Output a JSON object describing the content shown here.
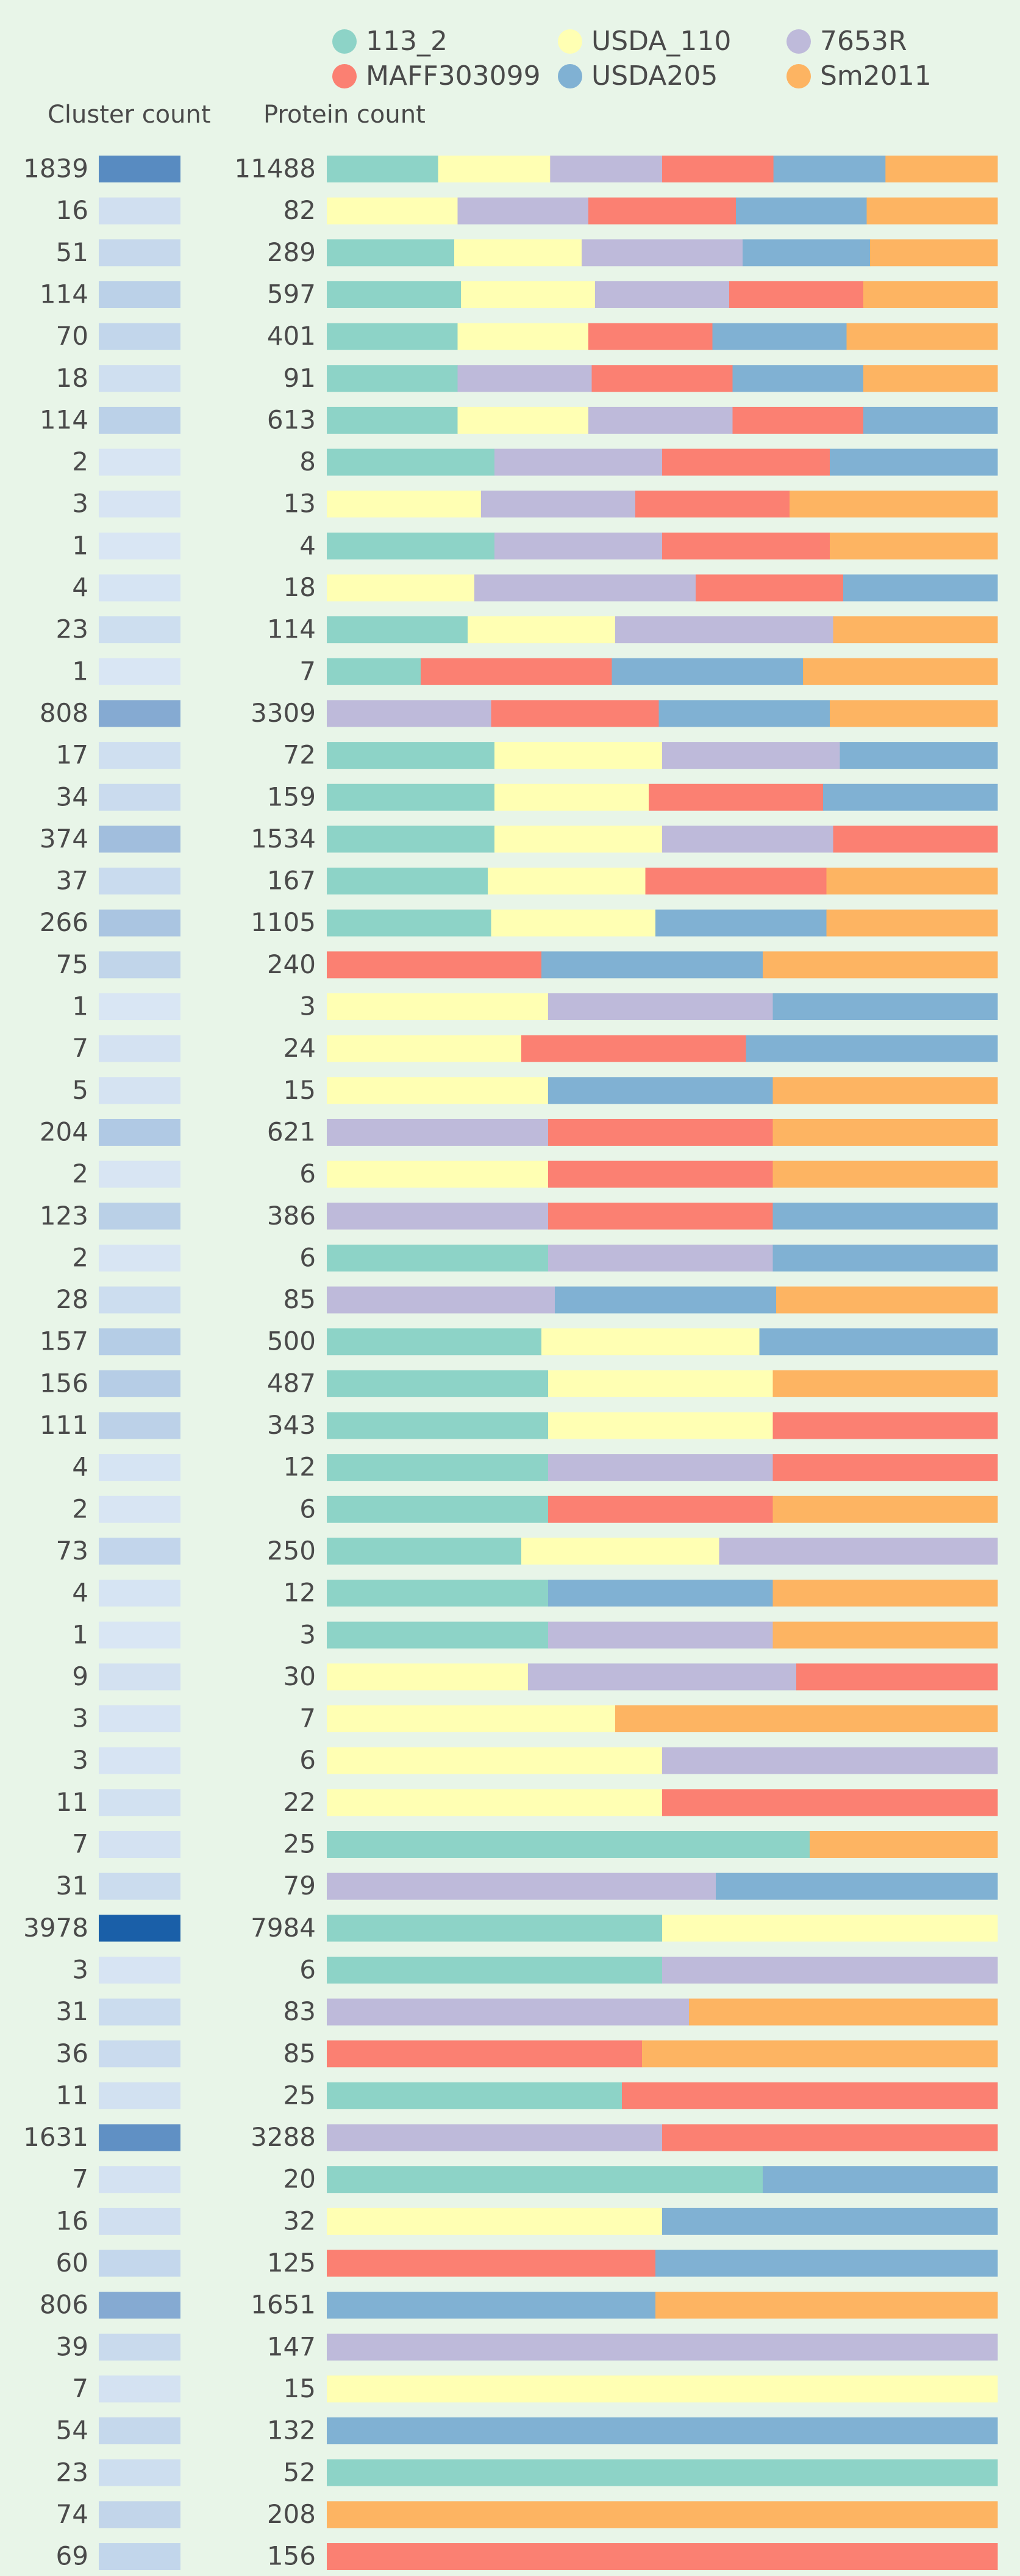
{
  "chart_data": {
    "type": "bar",
    "subtype": "stacked-horizontal-100-percent",
    "column_headers": {
      "cluster_count": "Cluster count",
      "protein_count": "Protein count"
    },
    "legend": [
      {
        "name": "113_2",
        "color": "#8dd3c7"
      },
      {
        "name": "USDA_110",
        "color": "#ffffb3"
      },
      {
        "name": "7653R",
        "color": "#bebada"
      },
      {
        "name": "MAFF303099",
        "color": "#fb8072"
      },
      {
        "name": "USDA205",
        "color": "#80b1d3"
      },
      {
        "name": "Sm2011",
        "color": "#fdb462"
      }
    ],
    "cluster_heat_colors": {
      "low": "#dce8f5",
      "high": "#1a5fa8"
    },
    "rows": [
      {
        "cluster_count": 1839,
        "protein_count": 11488,
        "strains": [
          "113_2",
          "USDA_110",
          "7653R",
          "MAFF303099",
          "USDA205",
          "Sm2011"
        ]
      },
      {
        "cluster_count": 16,
        "protein_count": 82,
        "strains": [
          "USDA_110",
          "7653R",
          "MAFF303099",
          "USDA205",
          "Sm2011"
        ]
      },
      {
        "cluster_count": 51,
        "protein_count": 289,
        "strains": [
          "113_2",
          "USDA_110",
          "7653R",
          "USDA205",
          "Sm2011"
        ]
      },
      {
        "cluster_count": 114,
        "protein_count": 597,
        "strains": [
          "113_2",
          "USDA_110",
          "7653R",
          "MAFF303099",
          "Sm2011"
        ]
      },
      {
        "cluster_count": 70,
        "protein_count": 401,
        "strains": [
          "113_2",
          "USDA_110",
          "MAFF303099",
          "USDA205",
          "Sm2011"
        ]
      },
      {
        "cluster_count": 18,
        "protein_count": 91,
        "strains": [
          "113_2",
          "7653R",
          "MAFF303099",
          "USDA205",
          "Sm2011"
        ]
      },
      {
        "cluster_count": 114,
        "protein_count": 613,
        "strains": [
          "113_2",
          "USDA_110",
          "7653R",
          "MAFF303099",
          "USDA205"
        ]
      },
      {
        "cluster_count": 2,
        "protein_count": 8,
        "strains": [
          "113_2",
          "7653R",
          "MAFF303099",
          "USDA205"
        ]
      },
      {
        "cluster_count": 3,
        "protein_count": 13,
        "strains": [
          "USDA_110",
          "7653R",
          "MAFF303099",
          "Sm2011"
        ]
      },
      {
        "cluster_count": 1,
        "protein_count": 4,
        "strains": [
          "113_2",
          "7653R",
          "MAFF303099",
          "Sm2011"
        ]
      },
      {
        "cluster_count": 4,
        "protein_count": 18,
        "strains": [
          "USDA_110",
          "7653R",
          "MAFF303099",
          "USDA205"
        ]
      },
      {
        "cluster_count": 23,
        "protein_count": 114,
        "strains": [
          "113_2",
          "USDA_110",
          "7653R",
          "Sm2011"
        ]
      },
      {
        "cluster_count": 1,
        "protein_count": 7,
        "strains": [
          "113_2",
          "MAFF303099",
          "USDA205",
          "Sm2011"
        ]
      },
      {
        "cluster_count": 808,
        "protein_count": 3309,
        "strains": [
          "7653R",
          "MAFF303099",
          "USDA205",
          "Sm2011"
        ]
      },
      {
        "cluster_count": 17,
        "protein_count": 72,
        "strains": [
          "113_2",
          "USDA_110",
          "7653R",
          "USDA205"
        ]
      },
      {
        "cluster_count": 34,
        "protein_count": 159,
        "strains": [
          "113_2",
          "USDA_110",
          "MAFF303099",
          "USDA205"
        ]
      },
      {
        "cluster_count": 374,
        "protein_count": 1534,
        "strains": [
          "113_2",
          "USDA_110",
          "7653R",
          "MAFF303099"
        ]
      },
      {
        "cluster_count": 37,
        "protein_count": 167,
        "strains": [
          "113_2",
          "USDA_110",
          "MAFF303099",
          "Sm2011"
        ]
      },
      {
        "cluster_count": 266,
        "protein_count": 1105,
        "strains": [
          "113_2",
          "USDA_110",
          "USDA205",
          "Sm2011"
        ]
      },
      {
        "cluster_count": 75,
        "protein_count": 240,
        "strains": [
          "MAFF303099",
          "USDA205",
          "Sm2011"
        ]
      },
      {
        "cluster_count": 1,
        "protein_count": 3,
        "strains": [
          "USDA_110",
          "7653R",
          "USDA205"
        ]
      },
      {
        "cluster_count": 7,
        "protein_count": 24,
        "strains": [
          "USDA_110",
          "MAFF303099",
          "USDA205"
        ]
      },
      {
        "cluster_count": 5,
        "protein_count": 15,
        "strains": [
          "USDA_110",
          "USDA205",
          "Sm2011"
        ]
      },
      {
        "cluster_count": 204,
        "protein_count": 621,
        "strains": [
          "7653R",
          "MAFF303099",
          "Sm2011"
        ]
      },
      {
        "cluster_count": 2,
        "protein_count": 6,
        "strains": [
          "USDA_110",
          "MAFF303099",
          "Sm2011"
        ]
      },
      {
        "cluster_count": 123,
        "protein_count": 386,
        "strains": [
          "7653R",
          "MAFF303099",
          "USDA205"
        ]
      },
      {
        "cluster_count": 2,
        "protein_count": 6,
        "strains": [
          "113_2",
          "7653R",
          "USDA205"
        ]
      },
      {
        "cluster_count": 28,
        "protein_count": 85,
        "strains": [
          "7653R",
          "USDA205",
          "Sm2011"
        ]
      },
      {
        "cluster_count": 157,
        "protein_count": 500,
        "strains": [
          "113_2",
          "USDA_110",
          "USDA205"
        ]
      },
      {
        "cluster_count": 156,
        "protein_count": 487,
        "strains": [
          "113_2",
          "USDA_110",
          "Sm2011"
        ]
      },
      {
        "cluster_count": 111,
        "protein_count": 343,
        "strains": [
          "113_2",
          "USDA_110",
          "MAFF303099"
        ]
      },
      {
        "cluster_count": 4,
        "protein_count": 12,
        "strains": [
          "113_2",
          "7653R",
          "MAFF303099"
        ]
      },
      {
        "cluster_count": 2,
        "protein_count": 6,
        "strains": [
          "113_2",
          "MAFF303099",
          "Sm2011"
        ]
      },
      {
        "cluster_count": 73,
        "protein_count": 250,
        "strains": [
          "113_2",
          "USDA_110",
          "7653R"
        ]
      },
      {
        "cluster_count": 4,
        "protein_count": 12,
        "strains": [
          "113_2",
          "USDA205",
          "Sm2011"
        ]
      },
      {
        "cluster_count": 1,
        "protein_count": 3,
        "strains": [
          "113_2",
          "7653R",
          "Sm2011"
        ]
      },
      {
        "cluster_count": 9,
        "protein_count": 30,
        "strains": [
          "USDA_110",
          "7653R",
          "MAFF303099"
        ]
      },
      {
        "cluster_count": 3,
        "protein_count": 7,
        "strains": [
          "USDA_110",
          "Sm2011"
        ]
      },
      {
        "cluster_count": 3,
        "protein_count": 6,
        "strains": [
          "USDA_110",
          "7653R"
        ]
      },
      {
        "cluster_count": 11,
        "protein_count": 22,
        "strains": [
          "USDA_110",
          "MAFF303099"
        ]
      },
      {
        "cluster_count": 7,
        "protein_count": 25,
        "strains": [
          "113_2",
          "Sm2011"
        ]
      },
      {
        "cluster_count": 31,
        "protein_count": 79,
        "strains": [
          "7653R",
          "USDA205"
        ]
      },
      {
        "cluster_count": 3978,
        "protein_count": 7984,
        "strains": [
          "113_2",
          "USDA_110"
        ]
      },
      {
        "cluster_count": 3,
        "protein_count": 6,
        "strains": [
          "113_2",
          "7653R"
        ]
      },
      {
        "cluster_count": 31,
        "protein_count": 83,
        "strains": [
          "7653R",
          "Sm2011"
        ]
      },
      {
        "cluster_count": 36,
        "protein_count": 85,
        "strains": [
          "MAFF303099",
          "Sm2011"
        ]
      },
      {
        "cluster_count": 11,
        "protein_count": 25,
        "strains": [
          "113_2",
          "MAFF303099"
        ]
      },
      {
        "cluster_count": 1631,
        "protein_count": 3288,
        "strains": [
          "7653R",
          "MAFF303099"
        ]
      },
      {
        "cluster_count": 7,
        "protein_count": 20,
        "strains": [
          "113_2",
          "USDA205"
        ]
      },
      {
        "cluster_count": 16,
        "protein_count": 32,
        "strains": [
          "USDA_110",
          "USDA205"
        ]
      },
      {
        "cluster_count": 60,
        "protein_count": 125,
        "strains": [
          "MAFF303099",
          "USDA205"
        ]
      },
      {
        "cluster_count": 806,
        "protein_count": 1651,
        "strains": [
          "USDA205",
          "Sm2011"
        ]
      },
      {
        "cluster_count": 39,
        "protein_count": 147,
        "strains": [
          "7653R"
        ]
      },
      {
        "cluster_count": 7,
        "protein_count": 15,
        "strains": [
          "USDA_110"
        ]
      },
      {
        "cluster_count": 54,
        "protein_count": 132,
        "strains": [
          "USDA205"
        ]
      },
      {
        "cluster_count": 23,
        "protein_count": 52,
        "strains": [
          "113_2"
        ]
      },
      {
        "cluster_count": 74,
        "protein_count": 208,
        "strains": [
          "Sm2011"
        ]
      },
      {
        "cluster_count": 69,
        "protein_count": 156,
        "strains": [
          "MAFF303099"
        ]
      }
    ],
    "segment_fractions": [
      [
        0.166,
        0.167,
        0.167,
        0.166,
        0.167,
        0.167
      ],
      [
        0.195,
        0.195,
        0.22,
        0.195,
        0.195
      ],
      [
        0.19,
        0.19,
        0.24,
        0.19,
        0.19
      ],
      [
        0.2,
        0.2,
        0.2,
        0.2,
        0.2
      ],
      [
        0.195,
        0.195,
        0.185,
        0.2,
        0.225
      ],
      [
        0.195,
        0.2,
        0.21,
        0.195,
        0.2
      ],
      [
        0.195,
        0.195,
        0.215,
        0.195,
        0.2
      ],
      [
        0.25,
        0.25,
        0.25,
        0.25
      ],
      [
        0.23,
        0.23,
        0.23,
        0.31
      ],
      [
        0.25,
        0.25,
        0.25,
        0.25
      ],
      [
        0.22,
        0.33,
        0.22,
        0.23
      ],
      [
        0.21,
        0.22,
        0.325,
        0.245
      ],
      [
        0.14,
        0.285,
        0.285,
        0.29
      ],
      [
        0.245,
        0.25,
        0.255,
        0.25
      ],
      [
        0.25,
        0.25,
        0.265,
        0.235
      ],
      [
        0.25,
        0.23,
        0.26,
        0.26
      ],
      [
        0.25,
        0.25,
        0.255,
        0.245
      ],
      [
        0.24,
        0.235,
        0.27,
        0.255
      ],
      [
        0.245,
        0.245,
        0.255,
        0.255
      ],
      [
        0.32,
        0.33,
        0.35
      ],
      [
        0.33,
        0.335,
        0.335
      ],
      [
        0.29,
        0.335,
        0.375
      ],
      [
        0.33,
        0.335,
        0.335
      ],
      [
        0.33,
        0.335,
        0.335
      ],
      [
        0.33,
        0.335,
        0.335
      ],
      [
        0.33,
        0.335,
        0.335
      ],
      [
        0.33,
        0.335,
        0.335
      ],
      [
        0.34,
        0.33,
        0.33
      ],
      [
        0.32,
        0.325,
        0.355
      ],
      [
        0.33,
        0.335,
        0.335
      ],
      [
        0.33,
        0.335,
        0.335
      ],
      [
        0.33,
        0.335,
        0.335
      ],
      [
        0.33,
        0.335,
        0.335
      ],
      [
        0.29,
        0.295,
        0.415
      ],
      [
        0.33,
        0.335,
        0.335
      ],
      [
        0.33,
        0.335,
        0.335
      ],
      [
        0.3,
        0.4,
        0.3
      ],
      [
        0.43,
        0.57
      ],
      [
        0.5,
        0.5
      ],
      [
        0.5,
        0.5
      ],
      [
        0.72,
        0.28
      ],
      [
        0.58,
        0.42
      ],
      [
        0.5,
        0.5
      ],
      [
        0.5,
        0.5
      ],
      [
        0.54,
        0.46
      ],
      [
        0.47,
        0.53
      ],
      [
        0.44,
        0.56
      ],
      [
        0.5,
        0.5
      ],
      [
        0.65,
        0.35
      ],
      [
        0.5,
        0.5
      ],
      [
        0.49,
        0.51
      ],
      [
        0.49,
        0.51
      ],
      [
        1
      ],
      [
        1
      ],
      [
        1
      ],
      [
        1
      ],
      [
        1
      ],
      [
        1
      ]
    ]
  }
}
